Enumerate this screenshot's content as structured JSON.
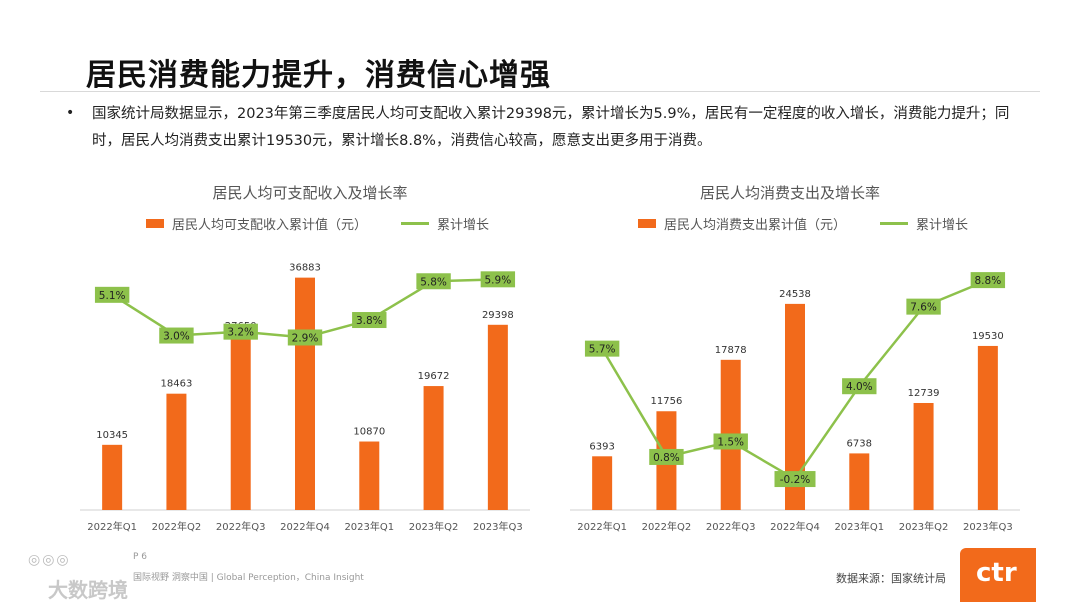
{
  "page": {
    "title": "居民消费能力提升，消费信心增强",
    "bullet": "国家统计局数据显示，2023年第三季度居民人均可支配收入累计29398元，累计增长为5.9%，居民有一定程度的收入增长，消费能力提升；同时，居民人均消费支出累计19530元，累计增长8.8%，消费信心较高，愿意支出更多用于消费。",
    "footer_page": "P 6",
    "footer_text": "国际视野 洞察中国 | Global Perception，China Insight",
    "source": "数据来源：国家统计局",
    "logo": "ctr",
    "watermark": "大数跨境",
    "accent_bar": "#F26A1B",
    "accent_line": "#8DC14B"
  },
  "chart_data": [
    {
      "type": "bar",
      "title": "居民人均可支配收入及增长率",
      "categories": [
        "2022年Q1",
        "2022年Q2",
        "2022年Q3",
        "2022年Q4",
        "2023年Q1",
        "2023年Q2",
        "2023年Q3"
      ],
      "series": [
        {
          "name": "居民人均可支配收入累计值（元）",
          "type": "bar",
          "values": [
            10345,
            18463,
            27650,
            36883,
            10870,
            19672,
            29398
          ]
        },
        {
          "name": "累计增长",
          "type": "line",
          "values": [
            5.1,
            3.0,
            3.2,
            2.9,
            3.8,
            5.8,
            5.9
          ],
          "labels": [
            "5.1%",
            "3.0%",
            "3.2%",
            "2.9%",
            "3.8%",
            "5.8%",
            "5.9%"
          ]
        }
      ],
      "ylim_bar": [
        0,
        40000
      ],
      "ylim_line": [
        -6,
        7
      ]
    },
    {
      "type": "bar",
      "title": "居民人均消费支出及增长率",
      "categories": [
        "2022年Q1",
        "2022年Q2",
        "2022年Q3",
        "2022年Q4",
        "2023年Q1",
        "2023年Q2",
        "2023年Q3"
      ],
      "series": [
        {
          "name": "居民人均消费支出累计值（元）",
          "type": "bar",
          "values": [
            6393,
            11756,
            17878,
            24538,
            6738,
            12739,
            19530
          ]
        },
        {
          "name": "累计增长",
          "type": "line",
          "values": [
            5.7,
            0.8,
            1.5,
            -0.2,
            4.0,
            7.6,
            8.8
          ],
          "labels": [
            "5.7%",
            "0.8%",
            "1.5%",
            "-0.2%",
            "4.0%",
            "7.6%",
            "8.8%"
          ]
        }
      ],
      "ylim_bar": [
        0,
        30000
      ],
      "ylim_line": [
        -1.6,
        9.8
      ]
    }
  ]
}
